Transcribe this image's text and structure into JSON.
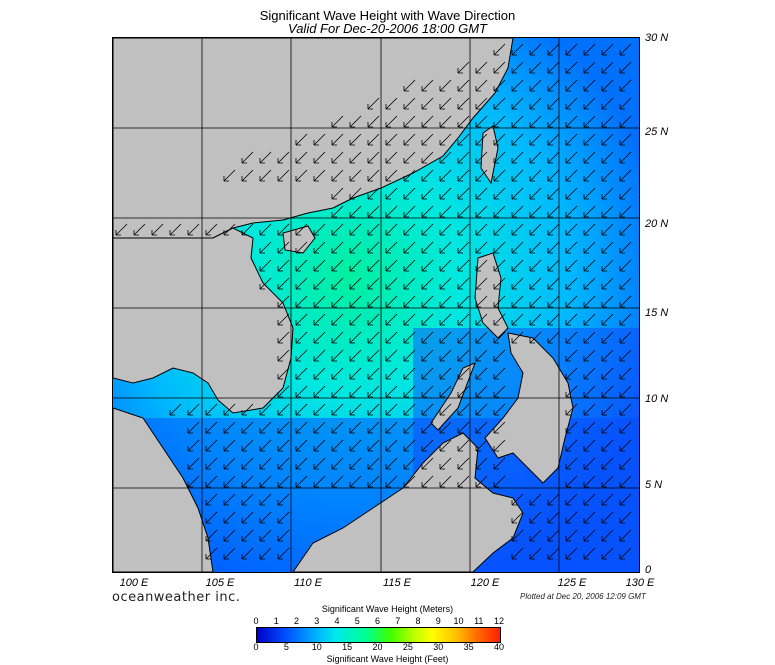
{
  "title": "Significant Wave Height with Wave Direction",
  "subtitle": "Valid For Dec-20-2006 18:00 GMT",
  "lat_labels": [
    "30 N",
    "25 N",
    "20 N",
    "15 N",
    "10 N",
    "5 N",
    "0"
  ],
  "lon_labels": [
    "100 E",
    "105 E",
    "110 E",
    "115 E",
    "120 E",
    "125 E",
    "130 E"
  ],
  "brand": "oceanweather inc.",
  "plotted": "Plotted at Dec 20, 2006 12:09 GMT",
  "colorbar": {
    "title_meters": "Significant Wave Height (Meters)",
    "title_feet": "Significant Wave Height (Feet)",
    "meters_ticks": [
      "0",
      "1",
      "2",
      "3",
      "4",
      "5",
      "6",
      "7",
      "8",
      "9",
      "10",
      "11",
      "12"
    ],
    "feet_ticks": [
      "0",
      "5",
      "10",
      "15",
      "20",
      "25",
      "30",
      "35",
      "40"
    ]
  },
  "colors": {
    "land": "#c0c0c0",
    "sea_low": "#0050ff",
    "sea_mid": "#00e8f0",
    "sea_high": "#00ff90"
  },
  "wave_direction": "toward southwest"
}
